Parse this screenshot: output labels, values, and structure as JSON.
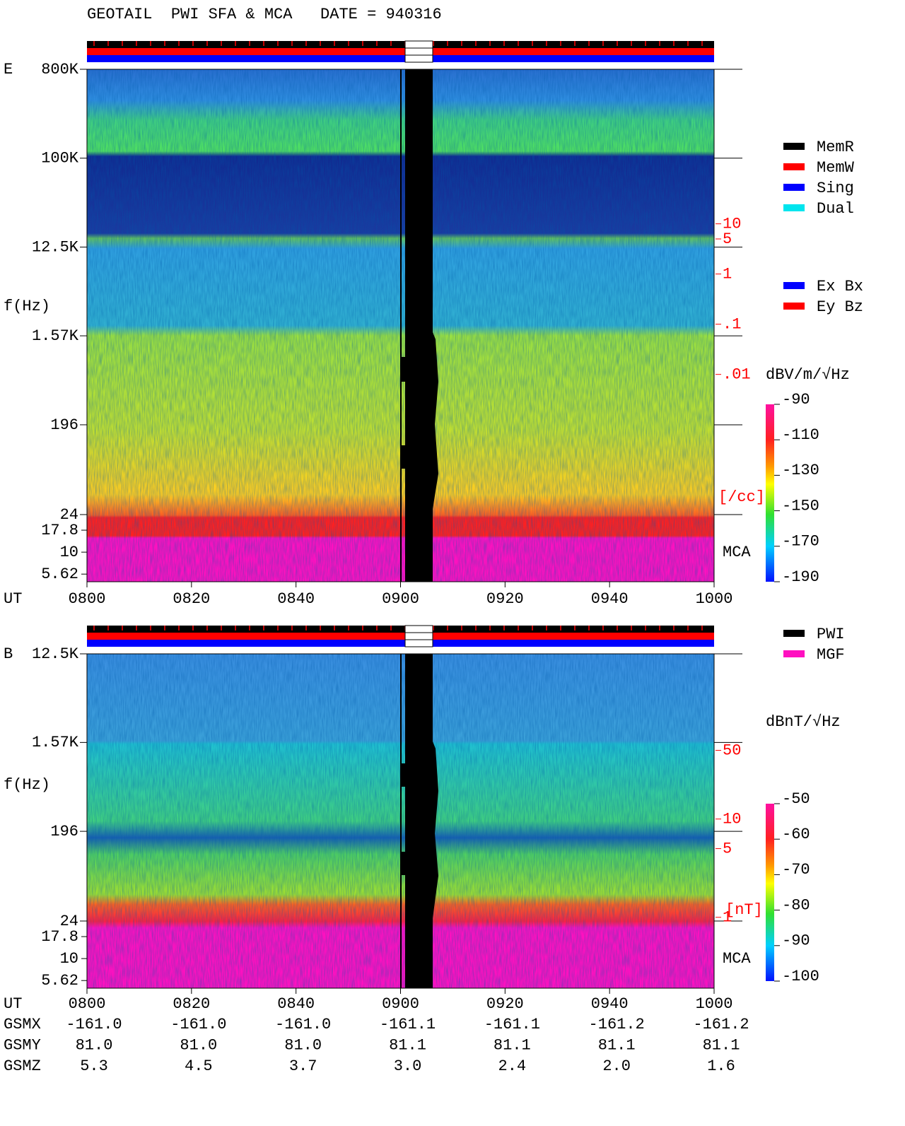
{
  "chart_data": [
    {
      "type": "spectrogram",
      "title": "GEOTAIL  PWI SFA & MCA   DATE = 940316",
      "panel_label": "E",
      "ylabel": "f(Hz)",
      "xlabel": "UT",
      "ylog": true,
      "ylim": [
        24,
        800000
      ],
      "yticks": [
        {
          "value": 800000,
          "label": "800K"
        },
        {
          "value": 100000,
          "label": "100K"
        },
        {
          "value": 12500,
          "label": "12.5K"
        },
        {
          "value": 1570,
          "label": "1.57K"
        },
        196,
        24
      ],
      "mca_label": "MCA",
      "mca_ylim": [
        4.6,
        26.8
      ],
      "mca_yticks": [
        17.8,
        10,
        5.62
      ],
      "xlim": [
        480,
        600
      ],
      "xticks": [
        {
          "value": 480,
          "label": "0800"
        },
        {
          "value": 500,
          "label": "0820"
        },
        {
          "value": 520,
          "label": "0840"
        },
        {
          "value": 540,
          "label": "0900"
        },
        {
          "value": 560,
          "label": "0920"
        },
        {
          "value": 580,
          "label": "0940"
        },
        {
          "value": 600,
          "label": "1000"
        }
      ],
      "y2lim": [
        7.4e-07,
        12000
      ],
      "y2ticks": [
        10,
        5,
        1,
        {
          "value": 0.1,
          "label": ".1"
        },
        {
          "value": 0.01,
          "label": ".01"
        }
      ],
      "y2label": "[/cc]",
      "colorbar": {
        "label": "dBV/m/√Hz",
        "lim": [
          -190,
          -90
        ],
        "ticks": [
          -90,
          -110,
          -130,
          -150,
          -170,
          -190
        ]
      },
      "legends": [
        [
          {
            "name": "MemR",
            "color": "#000000"
          },
          {
            "name": "MemW",
            "color": "#ff0000"
          },
          {
            "name": "Sing",
            "color": "#0000ff"
          },
          {
            "name": "Dual",
            "color": "#00e5ee"
          }
        ],
        [
          {
            "name": "Ex Bx",
            "color": "#0000ff"
          },
          {
            "name": "Ey Bz",
            "color": "#ff0000"
          }
        ]
      ]
    },
    {
      "type": "spectrogram",
      "panel_label": "B",
      "ylabel": "f(Hz)",
      "xlabel": "UT",
      "ylog": true,
      "ylim": [
        24,
        12500
      ],
      "yticks": [
        {
          "value": 12500,
          "label": "12.5K"
        },
        {
          "value": 1570,
          "label": "1.57K"
        },
        196,
        24
      ],
      "mca_label": "MCA",
      "mca_ylim": [
        4.6,
        26.8
      ],
      "mca_yticks": [
        17.8,
        10,
        5.62
      ],
      "xlim": [
        480,
        600
      ],
      "xticks": [
        {
          "value": 480,
          "label": "0800"
        },
        {
          "value": 500,
          "label": "0820"
        },
        {
          "value": 520,
          "label": "0840"
        },
        {
          "value": 540,
          "label": "0900"
        },
        {
          "value": 560,
          "label": "0920"
        },
        {
          "value": 580,
          "label": "0940"
        },
        {
          "value": 600,
          "label": "1000"
        }
      ],
      "y2lim": [
        0.19,
        480
      ],
      "y2ticks": [
        50,
        10,
        5,
        1
      ],
      "y2label": "[nT]",
      "colorbar": {
        "label": "dBnT/√Hz",
        "lim": [
          -100,
          -50
        ],
        "ticks": [
          -50,
          -60,
          -70,
          -80,
          -90,
          -100
        ]
      },
      "legends": [
        [
          {
            "name": "PWI",
            "color": "#000000"
          },
          {
            "name": "MGF",
            "color": "#ff10c0"
          }
        ]
      ]
    }
  ],
  "orbit": {
    "rows": [
      {
        "name": "GSMX",
        "values": [
          "-161.0",
          "-161.0",
          "-161.0",
          "-161.1",
          "-161.1",
          "-161.2",
          "-161.2"
        ]
      },
      {
        "name": "GSMY",
        "values": [
          "81.0",
          "81.0",
          "81.0",
          "81.1",
          "81.1",
          "81.1",
          "81.1"
        ]
      },
      {
        "name": "GSMZ",
        "values": [
          "5.3",
          "4.5",
          "3.7",
          "3.0",
          "2.4",
          "2.0",
          "1.6"
        ]
      }
    ]
  }
}
